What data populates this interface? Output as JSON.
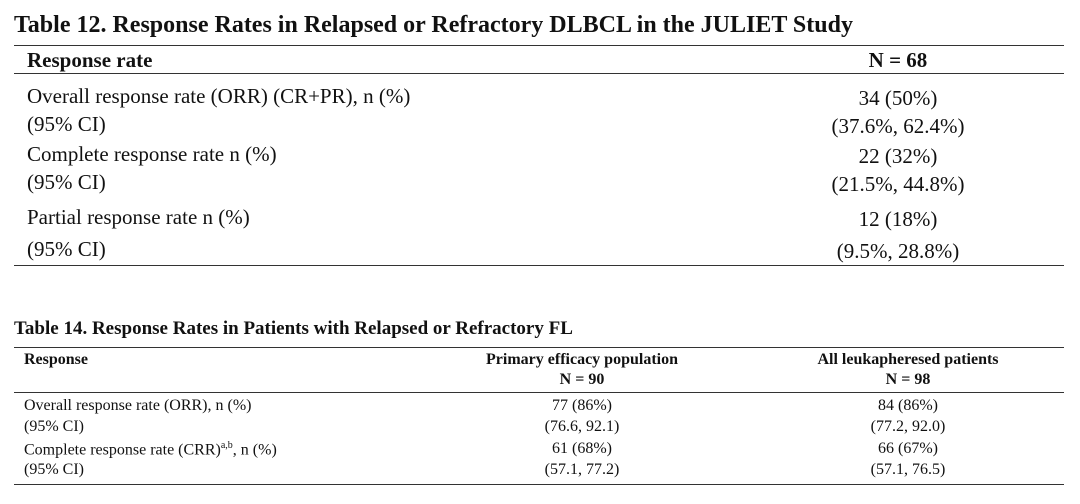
{
  "table12": {
    "title": "Table 12. Response Rates in Relapsed or Refractory DLBCL in the JULIET Study",
    "header": [
      "Response rate",
      "N = 68"
    ],
    "rows": [
      [
        "Overall response rate (ORR) (CR+PR), n (%)",
        "34 (50%)"
      ],
      [
        "(95% CI)",
        "(37.6%, 62.4%)"
      ],
      [
        "Complete response rate n (%)",
        "22 (32%)"
      ],
      [
        "(95% CI)",
        "(21.5%, 44.8%)"
      ],
      [
        "Partial response rate n (%)",
        "12 (18%)"
      ],
      [
        "(95% CI)",
        "(9.5%, 28.8%)"
      ]
    ]
  },
  "table14": {
    "title": "Table 14. Response Rates in Patients with Relapsed or Refractory FL",
    "header": [
      [
        "Response"
      ],
      [
        "Primary efficacy population",
        "N = 90"
      ],
      [
        "All leukapheresed patients",
        "N = 98"
      ]
    ],
    "rows": [
      [
        "Overall response rate (ORR), n (%)",
        "77 (86%)",
        "84 (86%)"
      ],
      [
        "(95% CI)",
        "(76.6, 92.1)",
        "(77.2, 92.0)"
      ],
      [
        {
          "text": "Complete response rate (CRR)",
          "sup": "a,b",
          "after": ", n (%)"
        },
        "61 (68%)",
        "66 (67%)"
      ],
      [
        "(95% CI)",
        "(57.1, 77.2)",
        "(57.1, 76.5)"
      ]
    ]
  }
}
